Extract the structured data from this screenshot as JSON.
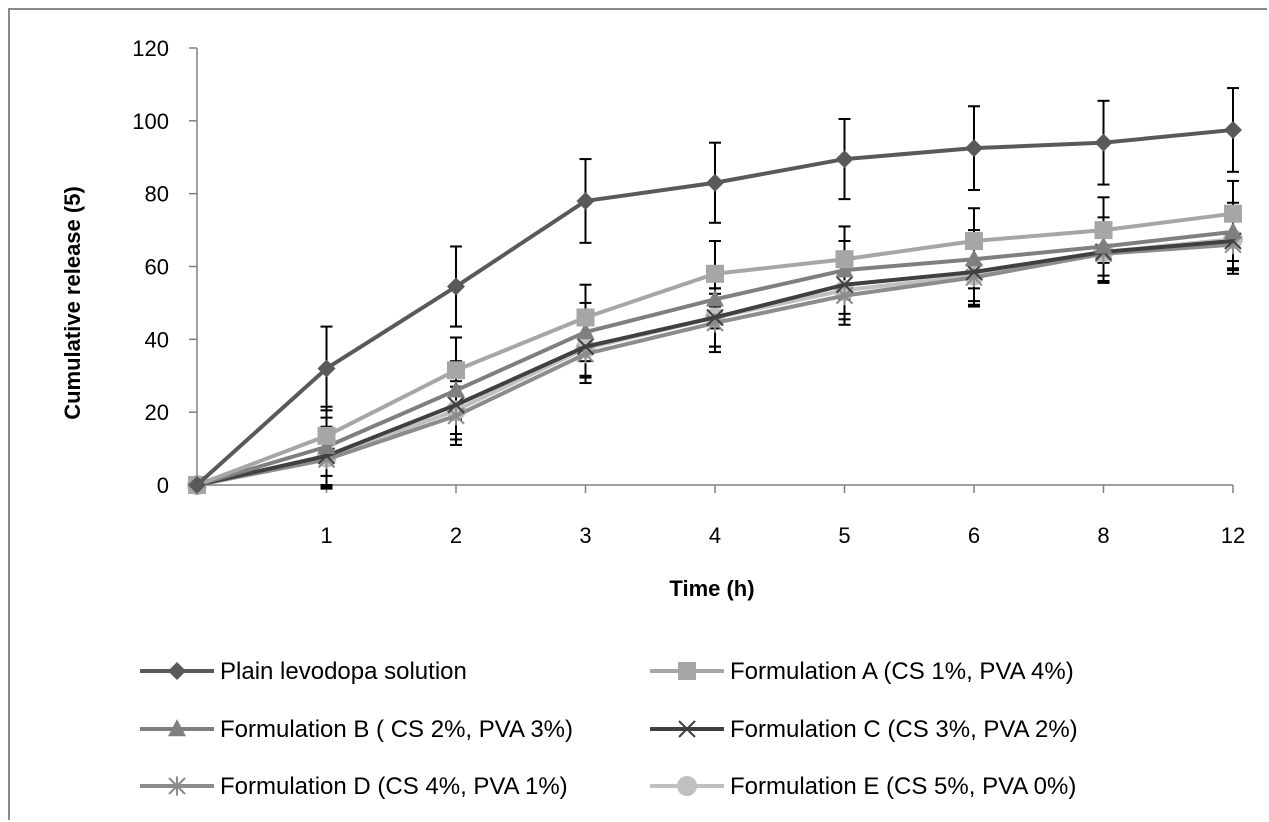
{
  "chart_data": {
    "type": "line",
    "title": "",
    "xlabel": "Time (h)",
    "ylabel": "Cumulative release (5)",
    "categories": [
      "0",
      "1",
      "2",
      "3",
      "4",
      "5",
      "6",
      "8",
      "12"
    ],
    "x_tick_labels": [
      "1",
      "2",
      "3",
      "4",
      "5",
      "6",
      "8",
      "12"
    ],
    "ylim": [
      0,
      120
    ],
    "yticks": [
      0,
      20,
      40,
      60,
      80,
      100,
      120
    ],
    "grid": false,
    "legend_position": "bottom",
    "series": [
      {
        "name": "Plain levodopa solution",
        "marker": "diamond",
        "color": "#595959",
        "values": [
          0,
          32,
          54.5,
          78,
          83,
          89.5,
          92.5,
          94,
          97.5
        ],
        "errors": [
          0,
          11.5,
          11,
          11.5,
          11,
          11,
          11.5,
          11.5,
          11.5
        ]
      },
      {
        "name": "Formulation A (CS 1%, PVA 4%)",
        "marker": "square",
        "color": "#a6a6a6",
        "values": [
          0,
          13.5,
          31.5,
          46,
          58,
          62,
          67,
          70,
          74.5
        ],
        "errors": [
          0,
          8,
          9,
          9,
          9,
          9,
          9,
          9,
          9
        ]
      },
      {
        "name": "Formulation B ( CS 2%, PVA 3%)",
        "marker": "triangle",
        "color": "#7f7f7f",
        "values": [
          0,
          10.5,
          26,
          42,
          51,
          59,
          62,
          65.5,
          69.5
        ],
        "errors": [
          0,
          8,
          8,
          8,
          8,
          8,
          8,
          8,
          8
        ]
      },
      {
        "name": "Formulation C (CS 3%, PVA 2%)",
        "marker": "x",
        "color": "#404040",
        "values": [
          0,
          8,
          22,
          38,
          46,
          55,
          58.5,
          64,
          67
        ],
        "errors": [
          0,
          8,
          8,
          8,
          8,
          8,
          8,
          8,
          8
        ]
      },
      {
        "name": "Formulation D (CS 4%, PVA 1%)",
        "marker": "star",
        "color": "#8c8c8c",
        "values": [
          0,
          7,
          19,
          36,
          44.5,
          52,
          57,
          63.5,
          66
        ],
        "errors": [
          0,
          8,
          8,
          8,
          8,
          8,
          8,
          8,
          8
        ]
      },
      {
        "name": "Formulation E (CS 5%, PVA 0%)",
        "marker": "circle",
        "color": "#c0c0c0",
        "values": [
          0,
          7.5,
          20.5,
          37.5,
          46,
          53.5,
          57.5,
          64,
          67.5
        ],
        "errors": [
          0,
          8,
          8,
          8,
          8,
          8,
          8,
          8,
          8
        ]
      }
    ]
  }
}
